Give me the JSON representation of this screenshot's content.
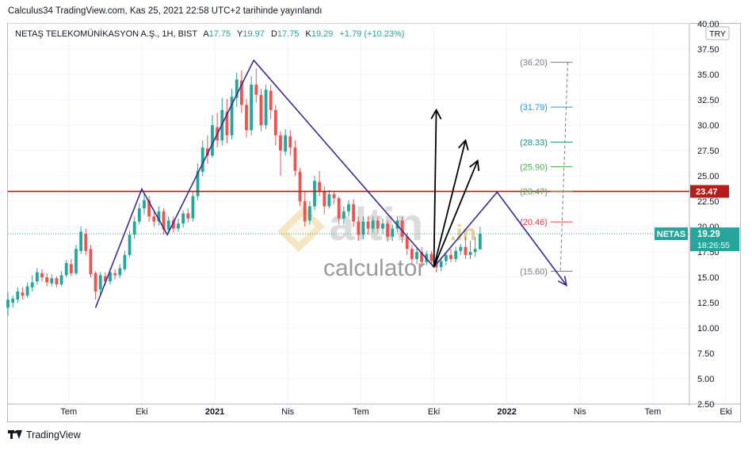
{
  "publication": {
    "text": "Calculus34 TradingView.com, Kas 25, 2021 22:58 UTC+2 tarihinde yayınlandı"
  },
  "footer": {
    "brand": "TradingView",
    "logo_icon": "tradingview-logo-icon"
  },
  "watermark": {
    "word1": "altin",
    "word1_suffix": ".in",
    "word2": "calculator"
  },
  "chart_data": {
    "type": "candlestick",
    "symbol_line": {
      "name": "NETAŞ TELEKOMÜNİKASYON A.Ş., 1H, BIST",
      "open_label": "A",
      "open": "17.75",
      "high_label": "Y",
      "high": "19.97",
      "low_label": "D",
      "low": "17.75",
      "close_label": "K",
      "close": "19.29",
      "change": "+1.79 (+10.23%)"
    },
    "currency": "TRY",
    "ylim": [
      2.5,
      40
    ],
    "y_ticks": [
      "2.50",
      "5.00",
      "7.50",
      "10.00",
      "12.50",
      "15.00",
      "17.50",
      "20.00",
      "22.50",
      "25.00",
      "27.50",
      "30.00",
      "32.50",
      "35.00",
      "37.50",
      "40.00"
    ],
    "y_tick_values": [
      2.5,
      5,
      7.5,
      10,
      12.5,
      15,
      17.5,
      20,
      22.5,
      25,
      27.5,
      30,
      32.5,
      35,
      37.5,
      40
    ],
    "x_ticks": [
      "Tem",
      "Eki",
      "2021",
      "Nis",
      "Tem",
      "Eki",
      "2022",
      "Nis",
      "Tem",
      "Eki"
    ],
    "x_tick_bold": [
      false,
      false,
      true,
      false,
      false,
      false,
      true,
      false,
      false,
      false
    ],
    "x_range_months": [
      -6,
      22
    ],
    "x_tick_months": [
      -3.5,
      -0.5,
      2.5,
      5.5,
      8.5,
      11.5,
      14.5,
      17.5,
      20.5,
      23.5
    ],
    "candles": [
      [
        -6.0,
        12.0,
        12.8,
        11.2,
        13.5
      ],
      [
        -5.8,
        12.5,
        12.9,
        12.0,
        13.2
      ],
      [
        -5.6,
        12.8,
        13.6,
        12.5,
        14.0
      ],
      [
        -5.4,
        13.5,
        13.2,
        12.8,
        14.0
      ],
      [
        -5.2,
        13.2,
        14.1,
        13.0,
        14.5
      ],
      [
        -5.0,
        14.0,
        14.5,
        13.6,
        15.2
      ],
      [
        -4.8,
        14.6,
        15.5,
        14.3,
        15.9
      ],
      [
        -4.6,
        15.4,
        15.0,
        14.6,
        15.8
      ],
      [
        -4.4,
        15.0,
        14.5,
        14.1,
        15.4
      ],
      [
        -4.2,
        14.4,
        14.9,
        14.1,
        15.3
      ],
      [
        -4.0,
        14.9,
        14.3,
        14.0,
        15.1
      ],
      [
        -3.8,
        14.3,
        15.2,
        14.1,
        15.6
      ],
      [
        -3.6,
        15.2,
        16.4,
        15.0,
        16.7
      ],
      [
        -3.4,
        16.3,
        15.4,
        15.1,
        16.8
      ],
      [
        -3.2,
        15.4,
        17.8,
        15.2,
        18.2
      ],
      [
        -3.0,
        17.6,
        19.5,
        17.3,
        20.0
      ],
      [
        -2.8,
        19.3,
        17.6,
        17.2,
        19.8
      ],
      [
        -2.6,
        17.8,
        15.3,
        15.0,
        18.2
      ],
      [
        -2.4,
        15.4,
        13.6,
        12.8,
        15.6
      ],
      [
        -2.2,
        13.8,
        15.2,
        13.3,
        15.5
      ],
      [
        -2.0,
        15.1,
        14.6,
        14.2,
        15.5
      ],
      [
        -1.8,
        14.6,
        15.5,
        14.3,
        15.9
      ],
      [
        -1.6,
        15.4,
        15.2,
        14.8,
        15.8
      ],
      [
        -1.4,
        15.2,
        15.9,
        14.9,
        16.3
      ],
      [
        -1.2,
        15.8,
        17.2,
        15.6,
        17.6
      ],
      [
        -1.0,
        17.2,
        19.2,
        17.0,
        19.6
      ],
      [
        -0.8,
        19.2,
        20.5,
        18.8,
        21.0
      ],
      [
        -0.6,
        20.5,
        21.8,
        20.2,
        22.3
      ],
      [
        -0.4,
        21.8,
        22.6,
        21.2,
        23.3
      ],
      [
        -0.2,
        22.6,
        21.0,
        20.5,
        23.0
      ],
      [
        0.0,
        21.0,
        20.5,
        20.0,
        21.6
      ],
      [
        0.2,
        20.5,
        21.5,
        20.1,
        22.0
      ],
      [
        0.4,
        21.5,
        19.7,
        19.2,
        21.8
      ],
      [
        0.6,
        19.7,
        20.6,
        19.3,
        21.0
      ],
      [
        0.8,
        20.6,
        19.8,
        19.4,
        21.0
      ],
      [
        1.0,
        19.8,
        20.3,
        19.5,
        20.8
      ],
      [
        1.2,
        20.3,
        21.3,
        19.9,
        21.6
      ],
      [
        1.4,
        21.3,
        20.8,
        20.4,
        21.8
      ],
      [
        1.6,
        20.8,
        23.0,
        20.5,
        23.5
      ],
      [
        1.8,
        23.0,
        25.5,
        22.6,
        26.2
      ],
      [
        2.0,
        25.4,
        27.8,
        25.0,
        28.5
      ],
      [
        2.2,
        27.7,
        27.0,
        26.2,
        29.0
      ],
      [
        2.4,
        27.0,
        30.0,
        26.8,
        31.0
      ],
      [
        2.6,
        29.8,
        28.5,
        27.8,
        31.2
      ],
      [
        2.8,
        28.5,
        31.5,
        28.0,
        32.7
      ],
      [
        3.0,
        31.3,
        29.0,
        28.2,
        32.6
      ],
      [
        3.2,
        29.0,
        32.8,
        28.6,
        33.6
      ],
      [
        3.4,
        32.7,
        34.5,
        31.8,
        35.2
      ],
      [
        3.6,
        34.4,
        32.0,
        31.2,
        35.4
      ],
      [
        3.8,
        32.0,
        29.5,
        28.8,
        32.6
      ],
      [
        4.0,
        29.5,
        34.0,
        29.0,
        34.8
      ],
      [
        4.2,
        34.0,
        33.0,
        32.2,
        35.6
      ],
      [
        4.4,
        33.0,
        30.0,
        29.4,
        33.6
      ],
      [
        4.6,
        30.0,
        33.5,
        29.6,
        34.0
      ],
      [
        4.8,
        33.4,
        31.5,
        30.6,
        34.0
      ],
      [
        5.0,
        31.5,
        29.0,
        28.0,
        32.0
      ],
      [
        5.2,
        29.0,
        27.5,
        25.0,
        29.4
      ],
      [
        5.4,
        27.4,
        29.0,
        27.0,
        29.6
      ],
      [
        5.6,
        28.9,
        27.8,
        27.0,
        29.5
      ],
      [
        5.8,
        27.8,
        25.5,
        25.0,
        28.5
      ],
      [
        6.0,
        25.4,
        22.5,
        22.0,
        25.8
      ],
      [
        6.2,
        22.5,
        20.5,
        20.0,
        23.5
      ],
      [
        6.4,
        20.6,
        22.0,
        20.2,
        22.5
      ],
      [
        6.6,
        22.0,
        24.5,
        21.6,
        25.0
      ],
      [
        6.8,
        24.4,
        23.5,
        23.0,
        25.5
      ],
      [
        7.0,
        23.5,
        22.0,
        21.2,
        24.0
      ],
      [
        7.2,
        22.0,
        23.2,
        21.8,
        23.6
      ],
      [
        7.4,
        23.2,
        22.8,
        22.2,
        23.5
      ],
      [
        7.6,
        22.8,
        20.8,
        20.2,
        23.0
      ],
      [
        7.8,
        20.8,
        21.5,
        20.2,
        22.0
      ],
      [
        8.0,
        21.5,
        22.2,
        21.0,
        22.6
      ],
      [
        8.2,
        22.2,
        20.5,
        20.0,
        22.7
      ],
      [
        8.4,
        20.5,
        19.2,
        18.6,
        21.0
      ],
      [
        8.6,
        19.2,
        20.5,
        18.8,
        21.0
      ],
      [
        8.8,
        20.5,
        19.8,
        19.2,
        21.0
      ],
      [
        9.0,
        19.8,
        20.6,
        19.4,
        21.0
      ],
      [
        9.2,
        20.6,
        19.8,
        19.3,
        21.0
      ],
      [
        9.4,
        19.8,
        20.3,
        19.3,
        20.8
      ],
      [
        9.6,
        20.3,
        19.0,
        18.5,
        20.6
      ],
      [
        9.8,
        19.0,
        19.8,
        18.6,
        20.2
      ],
      [
        10.0,
        19.8,
        20.6,
        19.4,
        21.0
      ],
      [
        10.2,
        20.6,
        19.0,
        18.4,
        21.0
      ],
      [
        10.4,
        19.0,
        17.8,
        17.2,
        19.4
      ],
      [
        10.6,
        17.8,
        16.8,
        16.2,
        18.2
      ],
      [
        10.8,
        16.8,
        17.5,
        16.3,
        18.0
      ],
      [
        11.0,
        17.5,
        16.5,
        16.0,
        18.0
      ],
      [
        11.2,
        16.5,
        17.3,
        16.2,
        17.6
      ],
      [
        11.4,
        17.3,
        16.6,
        16.2,
        17.6
      ],
      [
        11.6,
        16.6,
        16.0,
        15.5,
        17.0
      ],
      [
        11.8,
        16.0,
        16.6,
        15.6,
        17.0
      ],
      [
        12.0,
        16.6,
        17.2,
        16.2,
        17.5
      ],
      [
        12.2,
        17.2,
        16.8,
        16.5,
        17.8
      ],
      [
        12.4,
        16.8,
        17.6,
        16.5,
        18.0
      ],
      [
        12.6,
        17.6,
        18.0,
        17.2,
        18.3
      ],
      [
        12.8,
        18.0,
        17.2,
        16.8,
        19.0
      ],
      [
        13.0,
        17.2,
        17.5,
        16.8,
        18.6
      ],
      [
        13.2,
        17.5,
        17.8,
        17.0,
        19.0
      ],
      [
        13.4,
        17.75,
        19.29,
        17.75,
        19.97
      ]
    ],
    "last_price_line": 19.29,
    "level_line": {
      "value": 23.47,
      "label": "23.47",
      "color": "#b71c1c"
    },
    "price_badge": {
      "symbol": "NETAS",
      "price": "19.29",
      "countdown": "18:26:55",
      "color": "#26a69a"
    },
    "zigzag": [
      [
        -2.4,
        12.0
      ],
      [
        -0.5,
        23.7
      ],
      [
        0.55,
        19.2
      ],
      [
        4.1,
        36.4
      ],
      [
        11.5,
        16.0
      ],
      [
        14.1,
        23.4
      ],
      [
        16.95,
        14.2
      ]
    ],
    "arrows": [
      [
        11.5,
        16.0,
        11.6,
        31.5
      ],
      [
        11.5,
        16.0,
        12.8,
        28.5
      ],
      [
        11.5,
        16.0,
        13.3,
        26.5
      ]
    ],
    "fib_levels": [
      {
        "label": "(36.20)",
        "value": 36.2,
        "color": "#787b86"
      },
      {
        "label": "(31.79)",
        "value": 31.79,
        "color": "#2196f3"
      },
      {
        "label": "(28.33)",
        "value": 28.33,
        "color": "#089981"
      },
      {
        "label": "(25.90)",
        "value": 25.9,
        "color": "#4caf50"
      },
      {
        "label": "(23.47)",
        "value": 23.47,
        "color": "#4caf50"
      },
      {
        "label": "(20.46)",
        "value": 20.46,
        "color": "#f23645"
      },
      {
        "label": "(15.60)",
        "value": 15.6,
        "color": "#787b86"
      }
    ],
    "colors": {
      "up": "#26a69a",
      "down": "#ef5350",
      "zigzag": "#3b2c8f",
      "arrows": "#000000",
      "grid": "#f0f3fa"
    }
  }
}
